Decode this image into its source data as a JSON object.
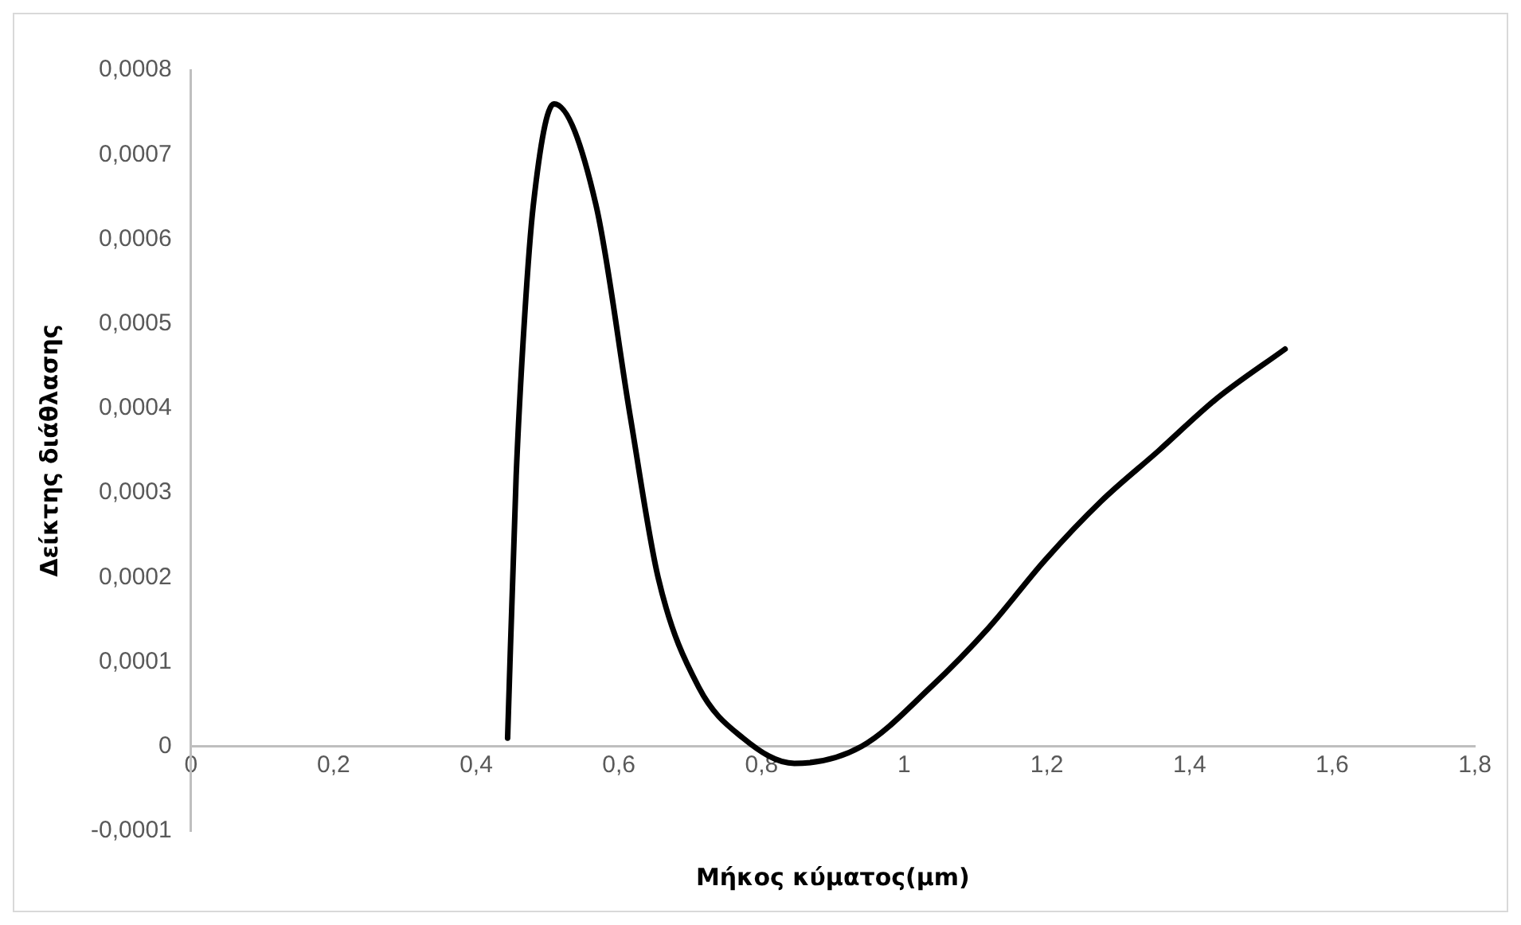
{
  "chart_data": {
    "type": "line",
    "xlabel": "Μήκος κύματος(μm)",
    "ylabel": "Δείκτης διάθλασης",
    "xlim": [
      0,
      1.8
    ],
    "xticks": [
      0,
      {
        "value": 0.2,
        "label": "0,2"
      },
      {
        "value": 0.4,
        "label": "0,4"
      },
      {
        "value": 0.6,
        "label": "0,6"
      },
      {
        "value": 0.8,
        "label": "0,8"
      },
      1,
      {
        "value": 1.2,
        "label": "1,2"
      },
      {
        "value": 1.4,
        "label": "1,4"
      },
      {
        "value": 1.6,
        "label": "1,6"
      },
      {
        "value": 1.8,
        "label": "1,8"
      }
    ],
    "ylim": [
      -0.0001,
      0.0008
    ],
    "yticks": [
      {
        "value": -0.0001,
        "label": "-0,0001"
      },
      0,
      {
        "value": 0.0001,
        "label": "0,0001"
      },
      {
        "value": 0.0002,
        "label": "0,0002"
      },
      {
        "value": 0.0003,
        "label": "0,0003"
      },
      {
        "value": 0.0004,
        "label": "0,0004"
      },
      {
        "value": 0.0005,
        "label": "0,0005"
      },
      {
        "value": 0.0006,
        "label": "0,0006"
      },
      {
        "value": 0.0007,
        "label": "0,0007"
      },
      {
        "value": 0.0008,
        "label": "0,0008"
      }
    ],
    "grid": false,
    "legend": false,
    "marker": "none",
    "line_style": "solid",
    "series": [
      {
        "color": "#000000",
        "x": [
          0.444,
          0.456,
          0.468,
          0.48,
          0.509,
          0.568,
          0.616,
          0.655,
          0.712,
          0.774,
          0.846,
          0.94,
          1.037,
          1.118,
          1.197,
          1.276,
          1.357,
          1.436,
          1.534
        ],
        "values": [
          1e-05,
          0.00032,
          0.00051,
          0.00064,
          0.00076,
          0.00064,
          0.00039,
          0.0002,
          7e-05,
          1e-05,
          -2e-05,
          0,
          7e-05,
          0.00014,
          0.00022,
          0.00029,
          0.00035,
          0.00041,
          0.00047
        ]
      }
    ]
  }
}
